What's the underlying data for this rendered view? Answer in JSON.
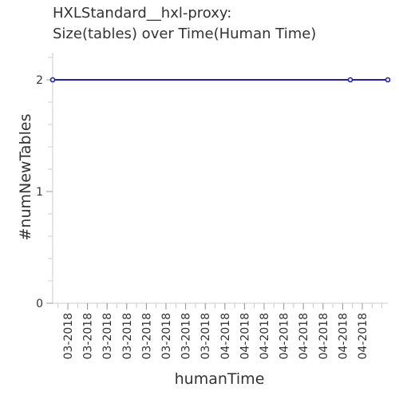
{
  "chart_data": {
    "type": "line",
    "title_lines": [
      "HXLStandard__hxl-proxy:",
      "Size(tables) over Time(Human Time)"
    ],
    "xlabel": "humanTime",
    "ylabel": "#numNewTables",
    "categories": [
      "03-2018",
      "03-2018",
      "03-2018",
      "03-2018",
      "03-2018",
      "03-2018",
      "03-2018",
      "03-2018",
      "04-2018",
      "04-2018",
      "04-2018",
      "04-2018",
      "04-2018",
      "04-2018",
      "04-2018",
      "04-2018"
    ],
    "series": [
      {
        "values": [
          2,
          2,
          2,
          2,
          2,
          2,
          2,
          2,
          2,
          2,
          2,
          2,
          2,
          2,
          2,
          2
        ],
        "marker_indices": [
          0,
          14,
          16
        ]
      }
    ],
    "ylim": [
      0,
      2.3
    ],
    "yticks": [
      0,
      1,
      2
    ],
    "grid": false,
    "line_color": "#1f1fbf",
    "marker_color": "#1f1fbf",
    "marker_fill": "#ffffff"
  }
}
